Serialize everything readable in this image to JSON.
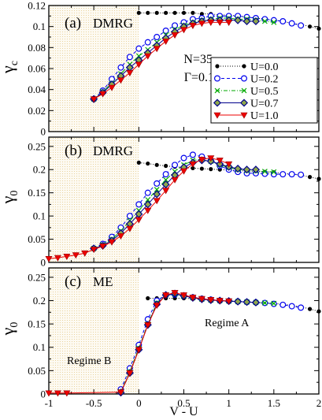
{
  "chart_data": [
    {
      "type": "line",
      "panel_label": "(a)",
      "method": "DMRG",
      "annotations": [
        "N=35",
        "Γ=0.1"
      ],
      "ylabel_base": "γ",
      "ylabel_sub": "c",
      "xlim": [
        -1,
        2
      ],
      "ylim": [
        0,
        0.12
      ],
      "yticks": [
        "0",
        "0.02",
        "0.04",
        "0.06",
        "0.08",
        "0.1",
        "0.12"
      ],
      "grid": false,
      "legend_position": "right",
      "shaded_region": [
        -1,
        0
      ],
      "series": [
        {
          "name": "U=0.0",
          "color": "#000000",
          "marker": "dot",
          "dash": "1,2",
          "x": [
            0,
            0.1,
            0.2,
            0.3,
            0.4,
            0.5,
            0.6,
            0.7,
            0.8,
            0.9,
            1.0,
            1.1,
            1.2,
            1.3,
            1.4,
            1.5,
            1.6,
            1.7,
            1.8,
            1.9,
            2.0
          ],
          "y": [
            0.113,
            0.113,
            0.113,
            0.113,
            0.113,
            0.113,
            0.113,
            0.112,
            0.112,
            0.111,
            0.111,
            0.11,
            0.109,
            0.108,
            0.107,
            0.106,
            0.105,
            0.103,
            0.102,
            0.1,
            0.098
          ]
        },
        {
          "name": "U=0.2",
          "color": "#0000ee",
          "marker": "circle",
          "dash": "4,3",
          "x": [
            -0.5,
            -0.4,
            -0.3,
            -0.2,
            -0.1,
            0,
            0.1,
            0.2,
            0.3,
            0.4,
            0.5,
            0.6,
            0.7,
            0.8,
            0.9,
            1.0,
            1.1,
            1.2,
            1.3,
            1.4,
            1.5,
            1.6,
            1.7,
            1.8
          ],
          "y": [
            0.031,
            0.039,
            0.05,
            0.061,
            0.071,
            0.079,
            0.085,
            0.09,
            0.096,
            0.101,
            0.104,
            0.107,
            0.108,
            0.11,
            0.11,
            0.11,
            0.11,
            0.109,
            0.108,
            0.107,
            0.106,
            0.105,
            0.103,
            0.101
          ]
        },
        {
          "name": "U=0.5",
          "color": "#00aa00",
          "marker": "x",
          "dash": "5,2,1,2",
          "x": [
            -0.5,
            -0.4,
            -0.3,
            -0.2,
            -0.1,
            0,
            0.1,
            0.2,
            0.3,
            0.4,
            0.5,
            0.6,
            0.7,
            0.8,
            0.9,
            1.0,
            1.1,
            1.2,
            1.3,
            1.4,
            1.5
          ],
          "y": [
            0.031,
            0.038,
            0.046,
            0.055,
            0.064,
            0.072,
            0.078,
            0.085,
            0.092,
            0.097,
            0.101,
            0.104,
            0.106,
            0.107,
            0.108,
            0.108,
            0.107,
            0.107,
            0.106,
            0.105,
            0.104
          ]
        },
        {
          "name": "U=0.7",
          "color": "#00008b",
          "marker": "diamond",
          "dash": "",
          "x": [
            -0.5,
            -0.4,
            -0.3,
            -0.2,
            -0.1,
            0,
            0.1,
            0.2,
            0.3,
            0.4,
            0.5,
            0.6,
            0.7,
            0.8,
            0.9,
            1.0,
            1.1,
            1.2,
            1.3
          ],
          "y": [
            0.031,
            0.037,
            0.045,
            0.053,
            0.061,
            0.068,
            0.075,
            0.082,
            0.089,
            0.095,
            0.1,
            0.103,
            0.105,
            0.106,
            0.106,
            0.106,
            0.106,
            0.105,
            0.105
          ]
        },
        {
          "name": "U=1.0",
          "color": "#ee0000",
          "marker": "triangle-down",
          "dash": "",
          "x": [
            -0.5,
            -0.4,
            -0.3,
            -0.2,
            -0.1,
            0,
            0.1,
            0.2,
            0.3,
            0.4,
            0.5,
            0.6,
            0.7,
            0.8,
            0.9,
            1.0
          ],
          "y": [
            0.031,
            0.036,
            0.042,
            0.049,
            0.056,
            0.064,
            0.072,
            0.079,
            0.086,
            0.092,
            0.097,
            0.101,
            0.103,
            0.104,
            0.104,
            0.104
          ]
        }
      ]
    },
    {
      "type": "line",
      "panel_label": "(b)",
      "method": "DMRG",
      "ylabel_base": "γ",
      "ylabel_sub": "0",
      "xlim": [
        -1,
        2
      ],
      "ylim": [
        0,
        0.27
      ],
      "yticks": [
        "0",
        "0.05",
        "0.1",
        "0.15",
        "0.2",
        "0.25"
      ],
      "grid": false,
      "shaded_region": [
        -1,
        0
      ],
      "series": [
        {
          "name": "U=0.0",
          "color": "#000000",
          "marker": "dot",
          "dash": "1,2",
          "x": [
            0,
            0.1,
            0.2,
            0.3,
            0.4,
            0.5,
            0.6,
            0.7,
            0.8,
            0.9,
            1.0,
            1.1,
            1.2,
            1.3,
            1.4,
            1.5,
            1.6,
            1.7,
            1.8,
            1.9,
            2.0
          ],
          "y": [
            0.215,
            0.213,
            0.21,
            0.208,
            0.206,
            0.205,
            0.203,
            0.202,
            0.201,
            0.2,
            0.199,
            0.198,
            0.197,
            0.196,
            0.195,
            0.194,
            0.192,
            0.19,
            0.188,
            0.184,
            0.18
          ]
        },
        {
          "name": "U=0.2",
          "color": "#0000ee",
          "marker": "circle",
          "dash": "4,3",
          "x": [
            -0.5,
            -0.4,
            -0.3,
            -0.2,
            -0.1,
            0,
            0.1,
            0.2,
            0.3,
            0.4,
            0.5,
            0.6,
            0.7,
            0.8,
            0.9,
            1.0,
            1.1,
            1.2,
            1.3,
            1.4,
            1.5,
            1.6,
            1.7,
            1.8
          ],
          "y": [
            0.03,
            0.04,
            0.055,
            0.075,
            0.1,
            0.125,
            0.15,
            0.17,
            0.19,
            0.21,
            0.225,
            0.232,
            0.228,
            0.22,
            0.208,
            0.2,
            0.195,
            0.192,
            0.192,
            0.191,
            0.19,
            0.19,
            0.19,
            0.189
          ]
        },
        {
          "name": "U=0.5",
          "color": "#00aa00",
          "marker": "x",
          "dash": "5,2,1,2",
          "x": [
            -0.5,
            -0.4,
            -0.3,
            -0.2,
            -0.1,
            0,
            0.1,
            0.2,
            0.3,
            0.4,
            0.5,
            0.6,
            0.7,
            0.8,
            0.9,
            1.0,
            1.1,
            1.2,
            1.3,
            1.4,
            1.5
          ],
          "y": [
            0.03,
            0.038,
            0.05,
            0.068,
            0.09,
            0.112,
            0.135,
            0.157,
            0.178,
            0.196,
            0.21,
            0.22,
            0.222,
            0.218,
            0.21,
            0.205,
            0.2,
            0.198,
            0.197,
            0.196,
            0.195
          ]
        },
        {
          "name": "U=0.7",
          "color": "#00008b",
          "marker": "diamond",
          "dash": "",
          "x": [
            -0.5,
            -0.4,
            -0.3,
            -0.2,
            -0.1,
            0,
            0.1,
            0.2,
            0.3,
            0.4,
            0.5,
            0.6,
            0.7,
            0.8,
            0.9,
            1.0,
            1.1,
            1.2,
            1.3
          ],
          "y": [
            0.03,
            0.036,
            0.047,
            0.063,
            0.083,
            0.104,
            0.125,
            0.147,
            0.168,
            0.188,
            0.205,
            0.215,
            0.22,
            0.218,
            0.212,
            0.206,
            0.202,
            0.2,
            0.2
          ]
        },
        {
          "name": "U=1.0",
          "color": "#ee0000",
          "marker": "triangle-down",
          "dash": "",
          "x": [
            -1.0,
            -0.9,
            -0.8,
            -0.7,
            -0.6,
            -0.5,
            -0.4,
            -0.3,
            -0.2,
            -0.1,
            0,
            0.1,
            0.2,
            0.3,
            0.4,
            0.5,
            0.6,
            0.7,
            0.8,
            0.9,
            1.0
          ],
          "y": [
            0.008,
            0.01,
            0.013,
            0.016,
            0.02,
            0.028,
            0.035,
            0.044,
            0.057,
            0.073,
            0.092,
            0.112,
            0.133,
            0.155,
            0.178,
            0.197,
            0.212,
            0.222,
            0.225,
            0.22,
            0.212
          ]
        }
      ]
    },
    {
      "type": "line",
      "panel_label": "(c)",
      "method": "ME",
      "annotations": [
        "Regime A",
        "Regime B"
      ],
      "ylabel_base": "γ",
      "ylabel_sub": "0",
      "xlabel": "V - U",
      "xlim": [
        -1,
        2
      ],
      "ylim": [
        0,
        0.27
      ],
      "xticks": [
        "-1",
        "-0.5",
        "0",
        "0.5",
        "1",
        "1.5",
        "2"
      ],
      "yticks": [
        "0",
        "0.05",
        "0.1",
        "0.15",
        "0.2",
        "0.25"
      ],
      "grid": false,
      "shaded_region": [
        -1,
        0
      ],
      "series": [
        {
          "name": "U=0.0",
          "color": "#000000",
          "marker": "dot",
          "dash": "1,2",
          "x": [
            0.1,
            0.2,
            0.3,
            0.4,
            0.5,
            0.6,
            0.7,
            0.8,
            0.9,
            1.0,
            1.1,
            1.2,
            1.3,
            1.4,
            1.5,
            1.6,
            1.7,
            1.8,
            1.9,
            2.0
          ],
          "y": [
            0.205,
            0.205,
            0.205,
            0.205,
            0.205,
            0.204,
            0.203,
            0.202,
            0.2,
            0.199,
            0.198,
            0.197,
            0.196,
            0.195,
            0.194,
            0.192,
            0.19,
            0.187,
            0.182,
            0.177
          ]
        },
        {
          "name": "U=0.2",
          "color": "#0000ee",
          "marker": "circle",
          "dash": "4,3",
          "x": [
            -0.2,
            -0.1,
            0,
            0.1,
            0.2,
            0.3,
            0.4,
            0.5,
            0.6,
            0.7,
            0.8,
            0.9,
            1.0,
            1.1,
            1.2,
            1.3,
            1.4,
            1.5,
            1.6,
            1.7,
            1.8
          ],
          "y": [
            0.01,
            0.055,
            0.105,
            0.16,
            0.2,
            0.212,
            0.213,
            0.21,
            0.207,
            0.204,
            0.202,
            0.2,
            0.199,
            0.198,
            0.197,
            0.196,
            0.195,
            0.193,
            0.191,
            0.188,
            0.185
          ]
        },
        {
          "name": "U=0.5",
          "color": "#00aa00",
          "marker": "x",
          "dash": "5,2,1,2",
          "x": [
            -0.2,
            -0.1,
            0,
            0.1,
            0.2,
            0.3,
            0.4,
            0.5,
            0.6,
            0.7,
            0.8,
            0.9,
            1.0,
            1.1,
            1.2,
            1.3,
            1.4,
            1.5
          ],
          "y": [
            0.005,
            0.048,
            0.098,
            0.15,
            0.195,
            0.212,
            0.214,
            0.21,
            0.206,
            0.203,
            0.201,
            0.2,
            0.199,
            0.198,
            0.197,
            0.196,
            0.195,
            0.194
          ]
        },
        {
          "name": "U=0.7",
          "color": "#00008b",
          "marker": "diamond",
          "dash": "",
          "x": [
            -0.2,
            -0.1,
            0,
            0.1,
            0.2,
            0.3,
            0.4,
            0.5,
            0.6,
            0.7,
            0.8,
            0.9,
            1.0,
            1.1,
            1.2,
            1.3
          ],
          "y": [
            0.003,
            0.045,
            0.095,
            0.148,
            0.192,
            0.212,
            0.215,
            0.21,
            0.206,
            0.203,
            0.201,
            0.2,
            0.199,
            0.198,
            0.197,
            0.196
          ]
        },
        {
          "name": "U=1.0",
          "color": "#ee0000",
          "marker": "triangle-down",
          "dash": "",
          "x": [
            -1.0,
            -0.9,
            -0.8,
            -0.2,
            -0.1,
            0,
            0.1,
            0.2,
            0.3,
            0.4,
            0.5,
            0.6,
            0.7,
            0.8,
            0.9,
            1.0
          ],
          "y": [
            0.002,
            0.002,
            0.002,
            0.004,
            0.045,
            0.095,
            0.148,
            0.19,
            0.212,
            0.217,
            0.212,
            0.207,
            0.204,
            0.202,
            0.2,
            0.199
          ]
        }
      ]
    }
  ]
}
